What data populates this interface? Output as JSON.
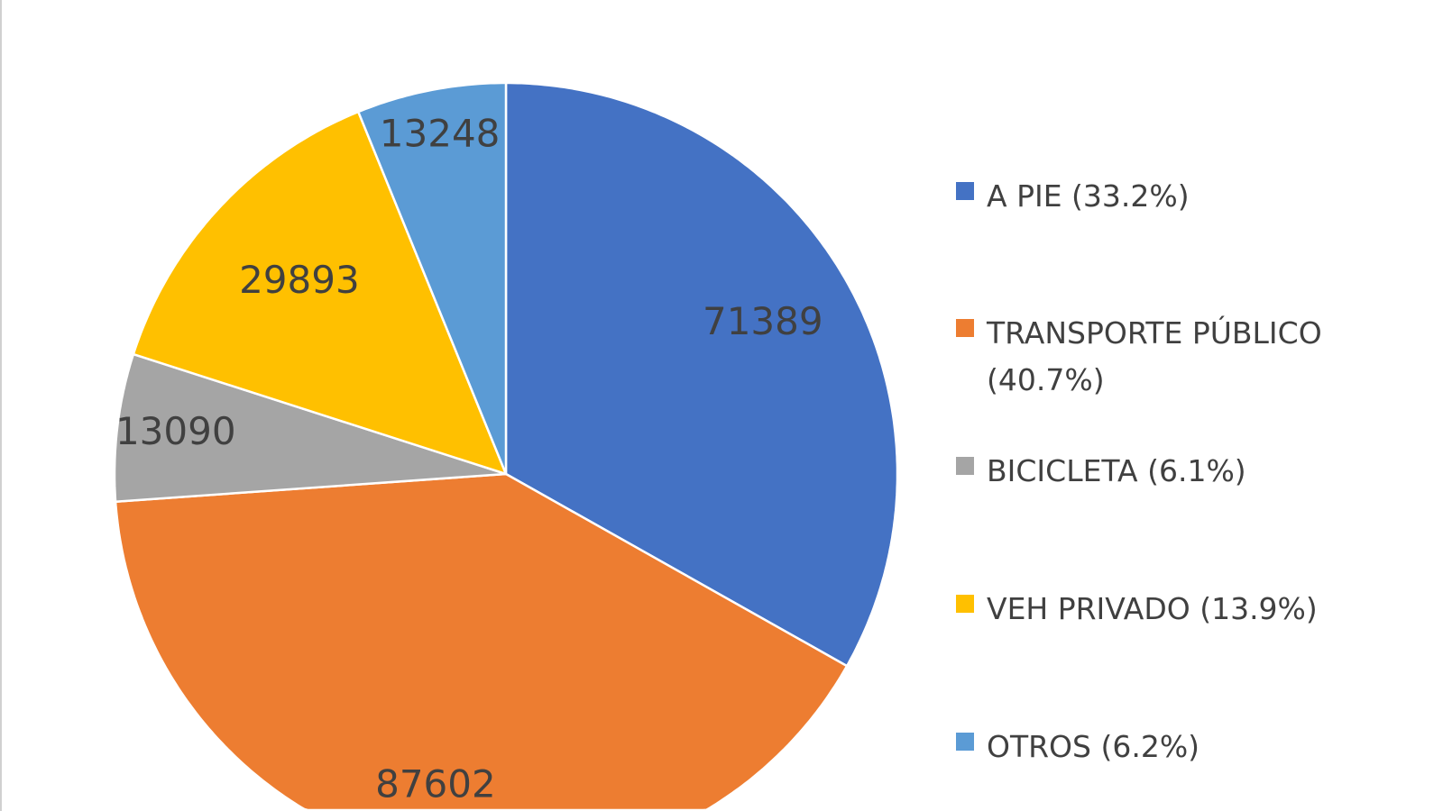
{
  "chart_data": {
    "type": "pie",
    "start_angle": "12 o'clock, clockwise",
    "legend_position": "right",
    "slices": [
      {
        "label": "A PIE (33.2%)",
        "value": 71389,
        "value_label": "71389",
        "color": "#4472C4"
      },
      {
        "label": "TRANSPORTE PÚBLICO (40.7%)",
        "value": 87602,
        "value_label": "87602",
        "color": "#ED7D31"
      },
      {
        "label": "BICICLETA (6.1%)",
        "value": 13090,
        "value_label": "13090",
        "color": "#A5A5A5"
      },
      {
        "label": "VEH PRIVADO (13.9%)",
        "value": 29893,
        "value_label": "29893",
        "color": "#FFC000"
      },
      {
        "label": "OTROS (6.2%)",
        "value": 13248,
        "value_label": "13248",
        "color": "#5B9BD5"
      }
    ]
  }
}
